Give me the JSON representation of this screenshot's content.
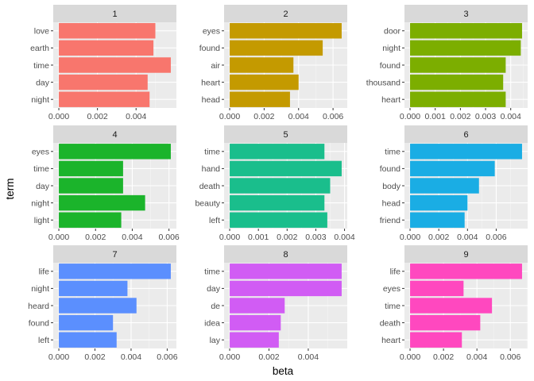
{
  "chart_data": {
    "type": "bar",
    "orientation": "horizontal",
    "xlabel": "beta",
    "ylabel": "term",
    "grid": true,
    "panels": [
      {
        "strip": "1",
        "terms": [
          "love",
          "earth",
          "time",
          "day",
          "night"
        ],
        "values": [
          0.005,
          0.0049,
          0.0058,
          0.0046,
          0.0047
        ],
        "ticks": [
          "0.000",
          "0.002",
          "0.004"
        ],
        "tick_values": [
          0,
          0.002,
          0.004
        ],
        "xlim": [
          -0.00029,
          0.00609
        ],
        "color": "#F8766D"
      },
      {
        "strip": "2",
        "terms": [
          "eyes",
          "found",
          "air",
          "heart",
          "head"
        ],
        "values": [
          0.0065,
          0.0054,
          0.0037,
          0.004,
          0.0035
        ],
        "ticks": [
          "0.000",
          "0.002",
          "0.004",
          "0.006"
        ],
        "tick_values": [
          0,
          0.002,
          0.004,
          0.006
        ],
        "xlim": [
          -0.000325,
          0.006825
        ],
        "color": "#C49A00"
      },
      {
        "strip": "3",
        "terms": [
          "door",
          "night",
          "found",
          "thousand",
          "heart"
        ],
        "values": [
          0.00445,
          0.0044,
          0.0038,
          0.0037,
          0.0038
        ],
        "ticks": [
          "0.000",
          "0.001",
          "0.002",
          "0.003",
          "0.004"
        ],
        "tick_values": [
          0,
          0.001,
          0.002,
          0.003,
          0.004
        ],
        "xlim": [
          -0.000222,
          0.004672
        ],
        "color": "#7CAE00"
      },
      {
        "strip": "4",
        "terms": [
          "eyes",
          "time",
          "day",
          "night",
          "light"
        ],
        "values": [
          0.0061,
          0.0035,
          0.0035,
          0.0047,
          0.0034
        ],
        "ticks": [
          "0.000",
          "0.002",
          "0.004",
          "0.006"
        ],
        "tick_values": [
          0,
          0.002,
          0.004,
          0.006
        ],
        "xlim": [
          -0.000305,
          0.006405
        ],
        "color": "#1BB42B"
      },
      {
        "strip": "5",
        "terms": [
          "time",
          "hand",
          "death",
          "beauty",
          "left"
        ],
        "values": [
          0.0033,
          0.0039,
          0.0035,
          0.0033,
          0.0034
        ],
        "ticks": [
          "0.000",
          "0.001",
          "0.002",
          "0.003",
          "0.004"
        ],
        "tick_values": [
          0,
          0.001,
          0.002,
          0.003,
          0.004
        ],
        "xlim": [
          -0.000195,
          0.004095
        ],
        "color": "#1ABE8C"
      },
      {
        "strip": "6",
        "terms": [
          "time",
          "found",
          "body",
          "head",
          "friend"
        ],
        "values": [
          0.0078,
          0.0059,
          0.0048,
          0.004,
          0.0038
        ],
        "ticks": [
          "0.000",
          "0.002",
          "0.004",
          "0.006"
        ],
        "tick_values": [
          0,
          0.002,
          0.004,
          0.006
        ],
        "xlim": [
          -0.00039,
          0.00819
        ],
        "color": "#1AADE4"
      },
      {
        "strip": "7",
        "terms": [
          "life",
          "night",
          "heard",
          "found",
          "left"
        ],
        "values": [
          0.0062,
          0.0038,
          0.0043,
          0.003,
          0.0032
        ],
        "ticks": [
          "0.000",
          "0.002",
          "0.004",
          "0.006"
        ],
        "tick_values": [
          0,
          0.002,
          0.004,
          0.006
        ],
        "xlim": [
          -0.00031,
          0.00651
        ],
        "color": "#5B8FFE"
      },
      {
        "strip": "8",
        "terms": [
          "time",
          "day",
          "de",
          "idea",
          "lay"
        ],
        "values": [
          0.0057,
          0.0057,
          0.0028,
          0.0026,
          0.0025
        ],
        "ticks": [
          "0.000",
          "0.002",
          "0.004"
        ],
        "tick_values": [
          0,
          0.002,
          0.004
        ],
        "xlim": [
          -0.000285,
          0.005985
        ],
        "color": "#D15CF4"
      },
      {
        "strip": "9",
        "terms": [
          "life",
          "eyes",
          "time",
          "death",
          "heart"
        ],
        "values": [
          0.0067,
          0.0032,
          0.0049,
          0.0042,
          0.0031
        ],
        "ticks": [
          "0.000",
          "0.002",
          "0.004",
          "0.006"
        ],
        "tick_values": [
          0,
          0.002,
          0.004,
          0.006
        ],
        "xlim": [
          -0.000335,
          0.007035
        ],
        "color": "#FF48BF"
      }
    ]
  }
}
